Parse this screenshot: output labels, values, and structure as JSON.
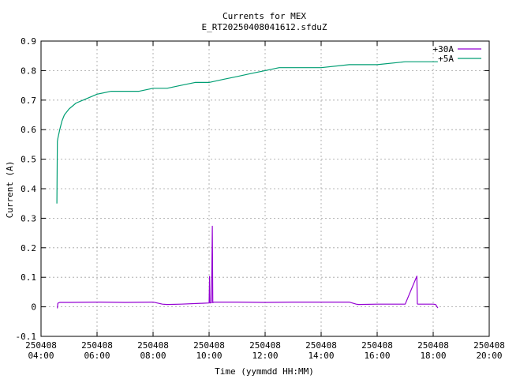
{
  "chart_data": {
    "type": "line",
    "title": "Currents for MEX",
    "subtitle": "E_RT20250408041612.sfduZ",
    "xlabel": "Time (yymmdd HH:MM)",
    "ylabel": "Current (A)",
    "xlim": [
      "250408 04:00",
      "250408 20:00"
    ],
    "ylim": [
      -0.1,
      0.9
    ],
    "grid": true,
    "legend_position": "top-right",
    "x_ticks": [
      {
        "date": "250408",
        "time": "04:00"
      },
      {
        "date": "250408",
        "time": "06:00"
      },
      {
        "date": "250408",
        "time": "08:00"
      },
      {
        "date": "250408",
        "time": "10:00"
      },
      {
        "date": "250408",
        "time": "12:00"
      },
      {
        "date": "250408",
        "time": "14:00"
      },
      {
        "date": "250408",
        "time": "16:00"
      },
      {
        "date": "250408",
        "time": "18:00"
      },
      {
        "date": "250408",
        "time": "20:00"
      }
    ],
    "y_ticks": [
      "-0.1",
      "0",
      "0.1",
      "0.2",
      "0.3",
      "0.4",
      "0.5",
      "0.6",
      "0.7",
      "0.8",
      "0.9"
    ],
    "series": [
      {
        "name": "+30A",
        "color": "#9400d3",
        "x": [
          "04:35",
          "04:36",
          "04:40",
          "05:00",
          "06:00",
          "07:00",
          "08:00",
          "08:20",
          "08:30",
          "09:00",
          "09:45",
          "10:00",
          "10:01",
          "10:02",
          "10:05",
          "10:07",
          "10:08",
          "10:10",
          "11:00",
          "12:00",
          "13:00",
          "14:00",
          "15:00",
          "15:15",
          "15:20",
          "16:00",
          "17:00",
          "17:25",
          "17:26",
          "17:27",
          "18:00",
          "18:05",
          "18:10"
        ],
        "y": [
          -0.005,
          0.012,
          0.015,
          0.015,
          0.016,
          0.015,
          0.016,
          0.009,
          0.008,
          0.009,
          0.012,
          0.013,
          0.103,
          0.013,
          0.014,
          0.273,
          0.014,
          0.016,
          0.016,
          0.015,
          0.016,
          0.016,
          0.016,
          0.009,
          0.008,
          0.009,
          0.009,
          0.104,
          0.01,
          0.009,
          0.009,
          0.008,
          -0.004
        ]
      },
      {
        "name": "+5A",
        "color": "#009e73",
        "x": [
          "04:34",
          "04:35",
          "04:36",
          "04:40",
          "04:45",
          "04:50",
          "05:00",
          "05:15",
          "05:30",
          "06:00",
          "06:30",
          "07:00",
          "07:30",
          "08:00",
          "08:30",
          "09:00",
          "09:30",
          "10:00",
          "10:30",
          "11:00",
          "11:30",
          "12:00",
          "12:30",
          "13:00",
          "14:00",
          "15:00",
          "16:00",
          "17:00",
          "17:30",
          "18:00",
          "18:10"
        ],
        "y": [
          0.35,
          0.56,
          0.57,
          0.6,
          0.63,
          0.65,
          0.67,
          0.69,
          0.7,
          0.72,
          0.73,
          0.73,
          0.73,
          0.74,
          0.74,
          0.75,
          0.76,
          0.76,
          0.77,
          0.78,
          0.79,
          0.8,
          0.81,
          0.81,
          0.81,
          0.82,
          0.82,
          0.83,
          0.83,
          0.83,
          0.83
        ]
      }
    ]
  }
}
